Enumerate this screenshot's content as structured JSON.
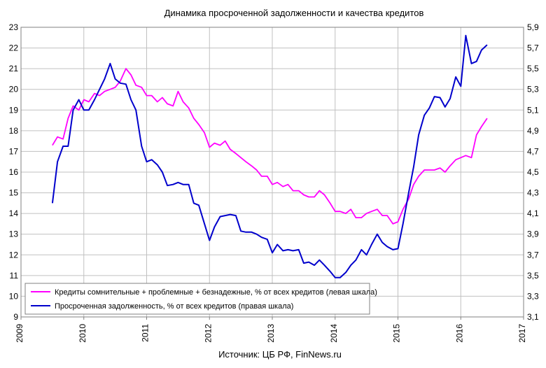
{
  "chart_data": {
    "type": "line",
    "title": "Динамика просроченной задолженности и качества кредитов",
    "source": "Источник: ЦБ РФ, FinNews.ru",
    "xlim": [
      2009,
      2017
    ],
    "x_ticks": [
      2009,
      2010,
      2011,
      2012,
      2013,
      2014,
      2015,
      2016,
      2017
    ],
    "x_tick_labels": [
      "2009",
      "2010",
      "2011",
      "2012",
      "2013",
      "2014",
      "2015",
      "2016",
      "2017"
    ],
    "y_left": {
      "lim": [
        9,
        23
      ],
      "ticks": [
        9,
        10,
        11,
        12,
        13,
        14,
        15,
        16,
        17,
        18,
        19,
        20,
        21,
        22,
        23
      ],
      "tick_labels": [
        "9",
        "10",
        "11",
        "12",
        "13",
        "14",
        "15",
        "16",
        "17",
        "18",
        "19",
        "20",
        "21",
        "22",
        "23"
      ]
    },
    "y_right": {
      "lim": [
        3.1,
        5.9
      ],
      "ticks": [
        3.1,
        3.3,
        3.5,
        3.7,
        3.9,
        4.1,
        4.3,
        4.5,
        4.7,
        4.9,
        5.1,
        5.3,
        5.5,
        5.7,
        5.9
      ],
      "tick_labels": [
        "3,1",
        "3,3",
        "3,5",
        "3,7",
        "3,9",
        "4,1",
        "4,3",
        "4,5",
        "4,7",
        "4,9",
        "5,1",
        "5,3",
        "5,5",
        "5,7",
        "5,9"
      ]
    },
    "grid": true,
    "legend_position": "bottom-left",
    "series": [
      {
        "name": "Кредиты сомнительные + проблемные + безнадежные, % от всех  кредитов (левая шкала)",
        "axis": "left",
        "color": "#ff00ff",
        "x": [
          2009.5,
          2009.58,
          2009.67,
          2009.75,
          2009.83,
          2009.92,
          2010.0,
          2010.08,
          2010.17,
          2010.25,
          2010.33,
          2010.42,
          2010.5,
          2010.58,
          2010.67,
          2010.75,
          2010.83,
          2010.92,
          2011.0,
          2011.08,
          2011.17,
          2011.25,
          2011.33,
          2011.42,
          2011.5,
          2011.58,
          2011.67,
          2011.75,
          2011.83,
          2011.92,
          2012.0,
          2012.08,
          2012.17,
          2012.25,
          2012.33,
          2012.42,
          2012.5,
          2012.58,
          2012.67,
          2012.75,
          2012.83,
          2012.92,
          2013.0,
          2013.08,
          2013.17,
          2013.25,
          2013.33,
          2013.42,
          2013.5,
          2013.58,
          2013.67,
          2013.75,
          2013.83,
          2013.92,
          2014.0,
          2014.08,
          2014.17,
          2014.25,
          2014.33,
          2014.42,
          2014.5,
          2014.58,
          2014.67,
          2014.75,
          2014.83,
          2014.92,
          2015.0,
          2015.08,
          2015.17,
          2015.25,
          2015.33,
          2015.42,
          2015.5,
          2015.58,
          2015.67,
          2015.75,
          2015.83,
          2015.92,
          2016.0,
          2016.08,
          2016.17,
          2016.25,
          2016.33,
          2016.42
        ],
        "values": [
          17.3,
          17.7,
          17.6,
          18.6,
          19.2,
          19.0,
          19.5,
          19.4,
          19.8,
          19.7,
          19.9,
          20.0,
          20.1,
          20.4,
          21.0,
          20.7,
          20.2,
          20.1,
          19.7,
          19.7,
          19.4,
          19.6,
          19.3,
          19.2,
          19.9,
          19.4,
          19.1,
          18.6,
          18.3,
          17.9,
          17.2,
          17.4,
          17.3,
          17.5,
          17.1,
          16.9,
          16.7,
          16.5,
          16.3,
          16.1,
          15.8,
          15.8,
          15.4,
          15.5,
          15.3,
          15.4,
          15.1,
          15.1,
          14.9,
          14.8,
          14.8,
          15.1,
          14.9,
          14.5,
          14.1,
          14.1,
          14.0,
          14.2,
          13.8,
          13.8,
          14.0,
          14.1,
          14.2,
          13.9,
          13.9,
          13.5,
          13.6,
          14.2,
          14.7,
          15.4,
          15.8,
          16.1,
          16.1,
          16.1,
          16.2,
          16.0,
          16.3,
          16.6,
          16.7,
          16.8,
          16.7,
          17.8,
          18.2,
          18.6
        ]
      },
      {
        "name": "Просроченная задолженность, % от всех  кредитов (правая шкала)",
        "axis": "right",
        "color": "#0000cc",
        "x": [
          2009.5,
          2009.58,
          2009.67,
          2009.75,
          2009.83,
          2009.92,
          2010.0,
          2010.08,
          2010.17,
          2010.25,
          2010.33,
          2010.42,
          2010.5,
          2010.58,
          2010.67,
          2010.75,
          2010.83,
          2010.92,
          2011.0,
          2011.08,
          2011.17,
          2011.25,
          2011.33,
          2011.42,
          2011.5,
          2011.58,
          2011.67,
          2011.75,
          2011.83,
          2011.92,
          2012.0,
          2012.08,
          2012.17,
          2012.25,
          2012.33,
          2012.42,
          2012.5,
          2012.58,
          2012.67,
          2012.75,
          2012.83,
          2012.92,
          2013.0,
          2013.08,
          2013.17,
          2013.25,
          2013.33,
          2013.42,
          2013.5,
          2013.58,
          2013.67,
          2013.75,
          2013.83,
          2013.92,
          2014.0,
          2014.08,
          2014.17,
          2014.25,
          2014.33,
          2014.42,
          2014.5,
          2014.58,
          2014.67,
          2014.75,
          2014.83,
          2014.92,
          2015.0,
          2015.08,
          2015.17,
          2015.25,
          2015.33,
          2015.42,
          2015.5,
          2015.58,
          2015.67,
          2015.75,
          2015.83,
          2015.92,
          2016.0,
          2016.08,
          2016.17,
          2016.25,
          2016.33,
          2016.42
        ],
        "values": [
          4.2,
          4.6,
          4.75,
          4.75,
          5.1,
          5.2,
          5.1,
          5.1,
          5.2,
          5.3,
          5.4,
          5.55,
          5.4,
          5.36,
          5.35,
          5.2,
          5.1,
          4.75,
          4.6,
          4.62,
          4.57,
          4.5,
          4.37,
          4.38,
          4.4,
          4.38,
          4.38,
          4.2,
          4.18,
          4.0,
          3.84,
          3.97,
          4.07,
          4.08,
          4.09,
          4.08,
          3.93,
          3.92,
          3.92,
          3.9,
          3.87,
          3.85,
          3.72,
          3.8,
          3.74,
          3.75,
          3.74,
          3.75,
          3.62,
          3.63,
          3.6,
          3.65,
          3.6,
          3.54,
          3.48,
          3.48,
          3.53,
          3.6,
          3.65,
          3.75,
          3.7,
          3.8,
          3.9,
          3.82,
          3.78,
          3.75,
          3.76,
          4.0,
          4.3,
          4.55,
          4.86,
          5.05,
          5.12,
          5.23,
          5.22,
          5.13,
          5.21,
          5.42,
          5.33,
          5.82,
          5.55,
          5.57,
          5.68,
          5.73
        ]
      }
    ]
  }
}
